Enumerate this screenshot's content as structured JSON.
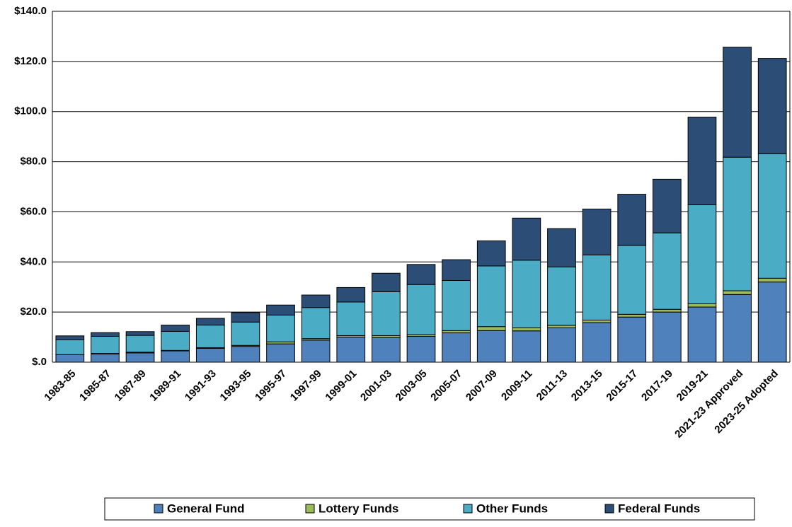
{
  "chart_data": {
    "type": "stacked_bar",
    "categories": [
      "1983-85",
      "1985-87",
      "1987-89",
      "1989-91",
      "1991-93",
      "1993-95",
      "1995-97",
      "1997-99",
      "1999-01",
      "2001-03",
      "2003-05",
      "2005-07",
      "2007-09",
      "2009-11",
      "2011-13",
      "2013-15",
      "2015-17",
      "2017-19",
      "2019-21",
      "2021-23 Approved",
      "2023-25 Adopted"
    ],
    "series": [
      {
        "name": "General Fund",
        "color": "#4f81bd",
        "values": [
          3,
          3.3,
          3.7,
          4.5,
          5.5,
          6.3,
          7.3,
          8.8,
          10,
          9.8,
          10.3,
          11.7,
          12.6,
          12.5,
          13.7,
          15.8,
          18,
          20,
          22,
          27,
          32
        ]
      },
      {
        "name": "Lottery Funds",
        "color": "#9bbb59",
        "values": [
          0,
          0.2,
          0.3,
          0.2,
          0.3,
          0.4,
          0.8,
          0.6,
          0.6,
          0.8,
          0.7,
          0.9,
          1.6,
          1.2,
          1,
          1,
          1.1,
          1.1,
          1.3,
          1.5,
          1.5
        ]
      },
      {
        "name": "Other Funds",
        "color": "#4bacc6",
        "values": [
          6,
          6.8,
          6.7,
          7.6,
          9,
          9.3,
          10.7,
          12.4,
          13.4,
          17.5,
          20,
          20,
          24.2,
          27,
          23.3,
          26,
          27.5,
          30.5,
          39.5,
          53.3,
          49.7
        ]
      },
      {
        "name": "Federal Funds",
        "color": "#2c4d75",
        "values": [
          1.5,
          1.5,
          1.5,
          2.5,
          2.7,
          3.8,
          4,
          5,
          5.8,
          7.4,
          8,
          8.3,
          10,
          16.8,
          15.3,
          18.3,
          20.4,
          21.4,
          35,
          43.9,
          38
        ]
      }
    ],
    "ylim": [
      0,
      140
    ],
    "yticks": [
      {
        "value": 0,
        "label": "$.0"
      },
      {
        "value": 20,
        "label": "$20.0"
      },
      {
        "value": 40,
        "label": "$40.0"
      },
      {
        "value": 60,
        "label": "$60.0"
      },
      {
        "value": 80,
        "label": "$80.0"
      },
      {
        "value": 100,
        "label": "$100.0"
      },
      {
        "value": 120,
        "label": "$120.0"
      },
      {
        "value": 140,
        "label": "$140.0"
      }
    ],
    "grid": true,
    "legend": "bottom"
  }
}
